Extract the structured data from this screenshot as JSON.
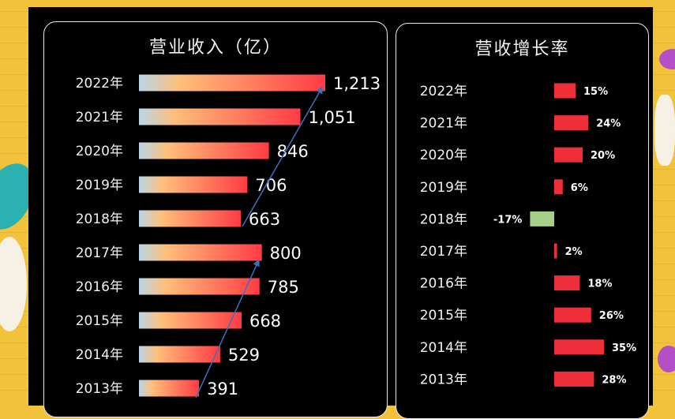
{
  "chart_data": [
    {
      "type": "bar",
      "title": "营业收入（亿）",
      "categories": [
        "2022年",
        "2021年",
        "2020年",
        "2019年",
        "2018年",
        "2017年",
        "2016年",
        "2015年",
        "2014年",
        "2013年"
      ],
      "values": [
        1213,
        1051,
        846,
        706,
        663,
        800,
        785,
        668,
        529,
        391
      ],
      "value_labels": [
        "1,213",
        "1,051",
        "846",
        "706",
        "663",
        "800",
        "785",
        "668",
        "529",
        "391"
      ],
      "bar_gradient": [
        "#b9d6e8",
        "#ffbf7a",
        "#ff3b44"
      ],
      "trend_color": "#3d6fc0",
      "xlabel": "",
      "ylabel": ""
    },
    {
      "type": "bar",
      "title": "营收增长率",
      "categories": [
        "2022年",
        "2021年",
        "2020年",
        "2019年",
        "2018年",
        "2017年",
        "2016年",
        "2015年",
        "2014年",
        "2013年"
      ],
      "values": [
        15,
        24,
        20,
        6,
        -17,
        2,
        18,
        26,
        35,
        28
      ],
      "value_labels": [
        "15%",
        "24%",
        "20%",
        "6%",
        "-17%",
        "2%",
        "18%",
        "26%",
        "35%",
        "28%"
      ],
      "positive_color": "#ee2f3a",
      "negative_color": "#a6d08a",
      "xlabel": "",
      "ylabel": ""
    }
  ]
}
